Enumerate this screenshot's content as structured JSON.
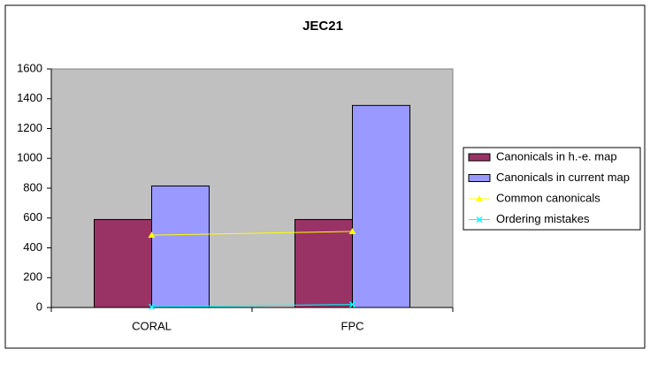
{
  "chart_data": {
    "type": "bar",
    "title": "JEC21",
    "categories": [
      "CORAL",
      "FPC"
    ],
    "series": [
      {
        "name": "Canonicals in h.-e. map",
        "type": "bar",
        "color": "#993366",
        "values": [
          590,
          590
        ]
      },
      {
        "name": "Canonicals in current map",
        "type": "bar",
        "color": "#9999ff",
        "values": [
          815,
          1355
        ]
      },
      {
        "name": "Common canonicals",
        "type": "line",
        "marker": "triangle",
        "color": "#ffff00",
        "values": [
          485,
          510
        ]
      },
      {
        "name": "Ordering mistakes",
        "type": "line",
        "marker": "x",
        "color": "#00ffff",
        "values": [
          5,
          20
        ]
      }
    ],
    "ylim": [
      0,
      1600
    ],
    "yticks": [
      0,
      200,
      400,
      600,
      800,
      1000,
      1200,
      1400,
      1600
    ],
    "grid": false,
    "legend": "right",
    "plot_background": "#c0c0c0"
  }
}
